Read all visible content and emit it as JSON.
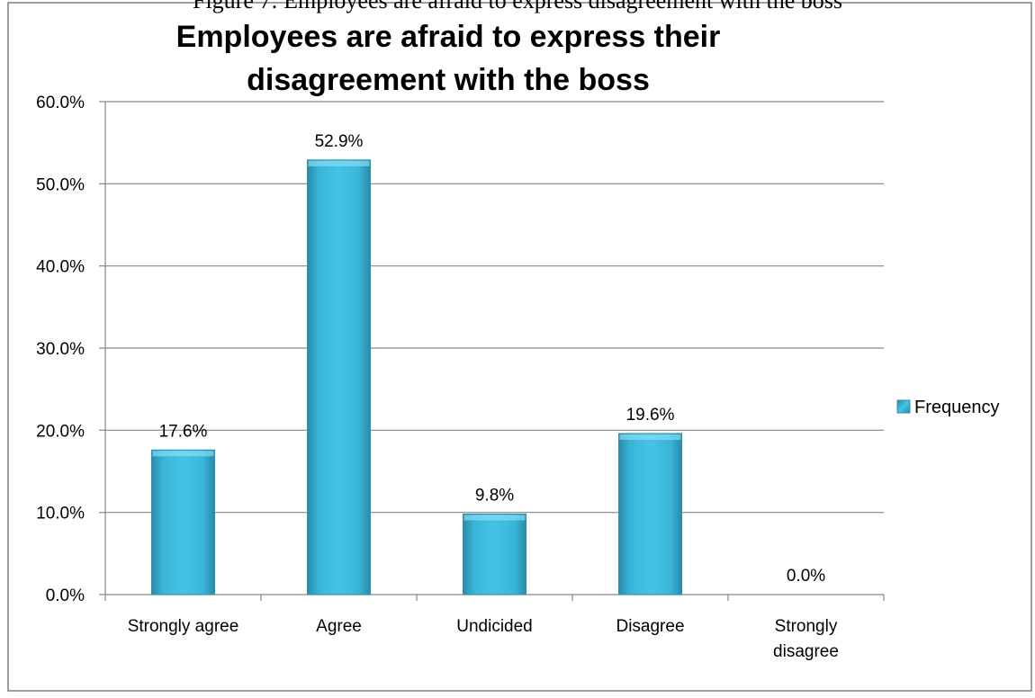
{
  "page": {
    "top_caption": "Figure 7: Employees are afraid to express disagreement with the boss"
  },
  "chart_data": {
    "type": "bar",
    "title_lines": [
      "Employees are afraid to express their",
      "disagreement with the boss"
    ],
    "categories": [
      "Strongly agree",
      "Agree",
      "Undicided",
      "Disagree",
      "Strongly disagree"
    ],
    "category_lines": [
      [
        "Strongly agree"
      ],
      [
        "Agree"
      ],
      [
        "Undicided"
      ],
      [
        "Disagree"
      ],
      [
        "Strongly",
        "disagree"
      ]
    ],
    "series": [
      {
        "name": "Frequency",
        "values": [
          17.6,
          52.9,
          9.8,
          19.6,
          0.0
        ]
      }
    ],
    "data_labels": [
      "17.6%",
      "52.9%",
      "9.8%",
      "19.6%",
      "0.0%"
    ],
    "yticks": [
      "0.0%",
      "10.0%",
      "20.0%",
      "30.0%",
      "40.0%",
      "50.0%",
      "60.0%"
    ],
    "ylim": [
      0,
      60
    ],
    "xlabel": "",
    "ylabel": "",
    "grid": true,
    "legend_position": "right",
    "colors": {
      "bar_fill": "#3bb9dc",
      "bar_dark": "#2b8fb0",
      "grid": "#868686",
      "border": "#7f7f7f"
    }
  }
}
